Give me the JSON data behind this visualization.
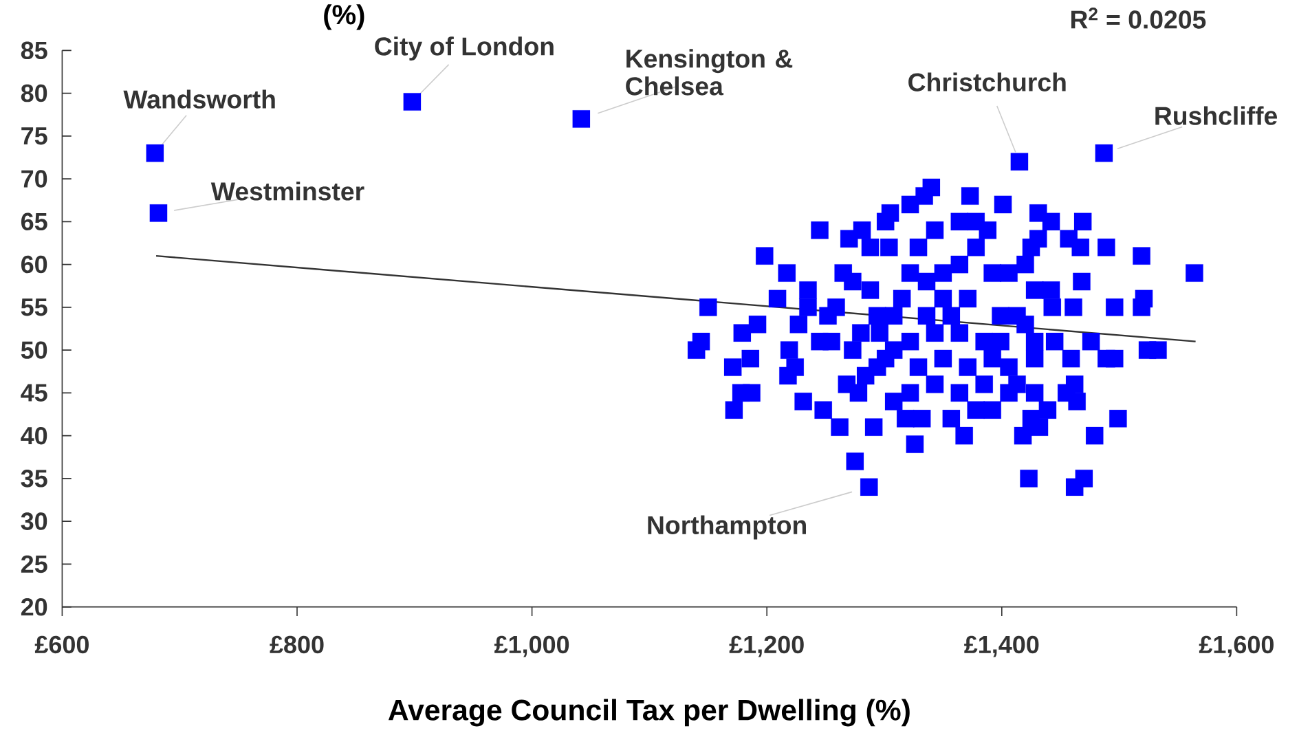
{
  "chart_data": {
    "type": "scatter",
    "xlabel": "Average Council Tax per Dwelling (%)",
    "ylabel": "(%)",
    "xlim": [
      600,
      1600
    ],
    "xticks": [
      {
        "value": 600,
        "label": "£600"
      },
      {
        "value": 800,
        "label": "£800"
      },
      {
        "value": 1000,
        "label": "£1,000"
      },
      {
        "value": 1200,
        "label": "£1,200"
      },
      {
        "value": 1400,
        "label": "£1,400"
      },
      {
        "value": 1600,
        "label": "£1,600"
      }
    ],
    "ylim": [
      20,
      85
    ],
    "yticks": [
      20,
      25,
      30,
      35,
      40,
      45,
      50,
      55,
      60,
      65,
      70,
      75,
      80,
      85
    ],
    "grid": false,
    "series": [
      {
        "marker": "square",
        "color": "#0000ff",
        "x": [
          679,
          682,
          898,
          1042,
          1415,
          1487,
          1287,
          1150,
          1144,
          1140,
          1198,
          1245,
          1171,
          1172,
          1178,
          1187,
          1179,
          1192,
          1186,
          1209,
          1217,
          1235,
          1227,
          1219,
          1218,
          1231,
          1248,
          1262,
          1275,
          1268,
          1278,
          1291,
          1326,
          1368,
          1418,
          1423,
          1462,
          1470,
          1479,
          1499,
          1464,
          1462,
          1455,
          1432,
          1425,
          1439,
          1459,
          1461,
          1468,
          1469,
          1467,
          1457,
          1442,
          1431,
          1431,
          1425,
          1420,
          1401,
          1373,
          1340,
          1334,
          1322,
          1305,
          1301,
          1489,
          1519,
          1564,
          1521,
          1519,
          1496,
          1524,
          1533,
          1489,
          1496,
          1476,
          1443,
          1442,
          1428,
          1428,
          1445,
          1265,
          1270,
          1281,
          1288,
          1304,
          1252,
          1245,
          1255,
          1273,
          1284,
          1294,
          1296,
          1288,
          1315,
          1329,
          1343,
          1364,
          1378,
          1388,
          1378,
          1364,
          1350,
          1336,
          1322,
          1350,
          1371,
          1392,
          1406,
          1399,
          1413,
          1420,
          1364,
          1343,
          1322,
          1308,
          1329,
          1350,
          1371,
          1392,
          1406,
          1413,
          1385,
          1364,
          1343,
          1322,
          1308,
          1318,
          1332,
          1357,
          1378,
          1392,
          1428,
          1406,
          1301,
          1385,
          1399,
          1428,
          1259,
          1273,
          1308,
          1357,
          1336,
          1294,
          1235,
          1224,
          1280
        ],
        "values": [
          73,
          66,
          79,
          77,
          72,
          73,
          34,
          55,
          51,
          50,
          61,
          64,
          48,
          43,
          45,
          45,
          52,
          53,
          49,
          56,
          59,
          57,
          53,
          50,
          47,
          44,
          43,
          41,
          37,
          46,
          45,
          41,
          39,
          40,
          40,
          35,
          34,
          35,
          40,
          42,
          44,
          46,
          45,
          41,
          42,
          43,
          49,
          55,
          58,
          65,
          62,
          63,
          65,
          66,
          63,
          62,
          60,
          67,
          68,
          69,
          68,
          67,
          66,
          65,
          62,
          61,
          59,
          56,
          55,
          55,
          50,
          50,
          49,
          49,
          51,
          55,
          57,
          57,
          49,
          51,
          59,
          63,
          64,
          62,
          62,
          54,
          51,
          51,
          50,
          47,
          48,
          52,
          57,
          56,
          62,
          64,
          65,
          65,
          64,
          62,
          60,
          59,
          58,
          59,
          56,
          56,
          59,
          59,
          54,
          54,
          53,
          52,
          52,
          51,
          50,
          48,
          49,
          48,
          49,
          48,
          46,
          46,
          45,
          46,
          45,
          44,
          42,
          42,
          42,
          43,
          43,
          45,
          45,
          49,
          51,
          51,
          51,
          55,
          58,
          54,
          54,
          54,
          54,
          55,
          48,
          52
        ]
      },
      {
        "type": "line",
        "color": "#333333",
        "x": [
          680,
          1565
        ],
        "values": [
          61,
          51
        ]
      }
    ],
    "annotations": [
      {
        "text": "Wandsworth",
        "x": 679,
        "y": 73
      },
      {
        "text": "Westminster",
        "x": 682,
        "y": 66
      },
      {
        "text": "City of London",
        "x": 898,
        "y": 79
      },
      {
        "text": "Kensington & Chelsea",
        "x": 1042,
        "y": 77
      },
      {
        "text": "Christchurch",
        "x": 1415,
        "y": 72
      },
      {
        "text": "Rushcliffe",
        "x": 1487,
        "y": 73
      },
      {
        "text": "Northampton",
        "x": 1287,
        "y": 34
      },
      "R$^{2}$ = 0.0205"
    ]
  }
}
